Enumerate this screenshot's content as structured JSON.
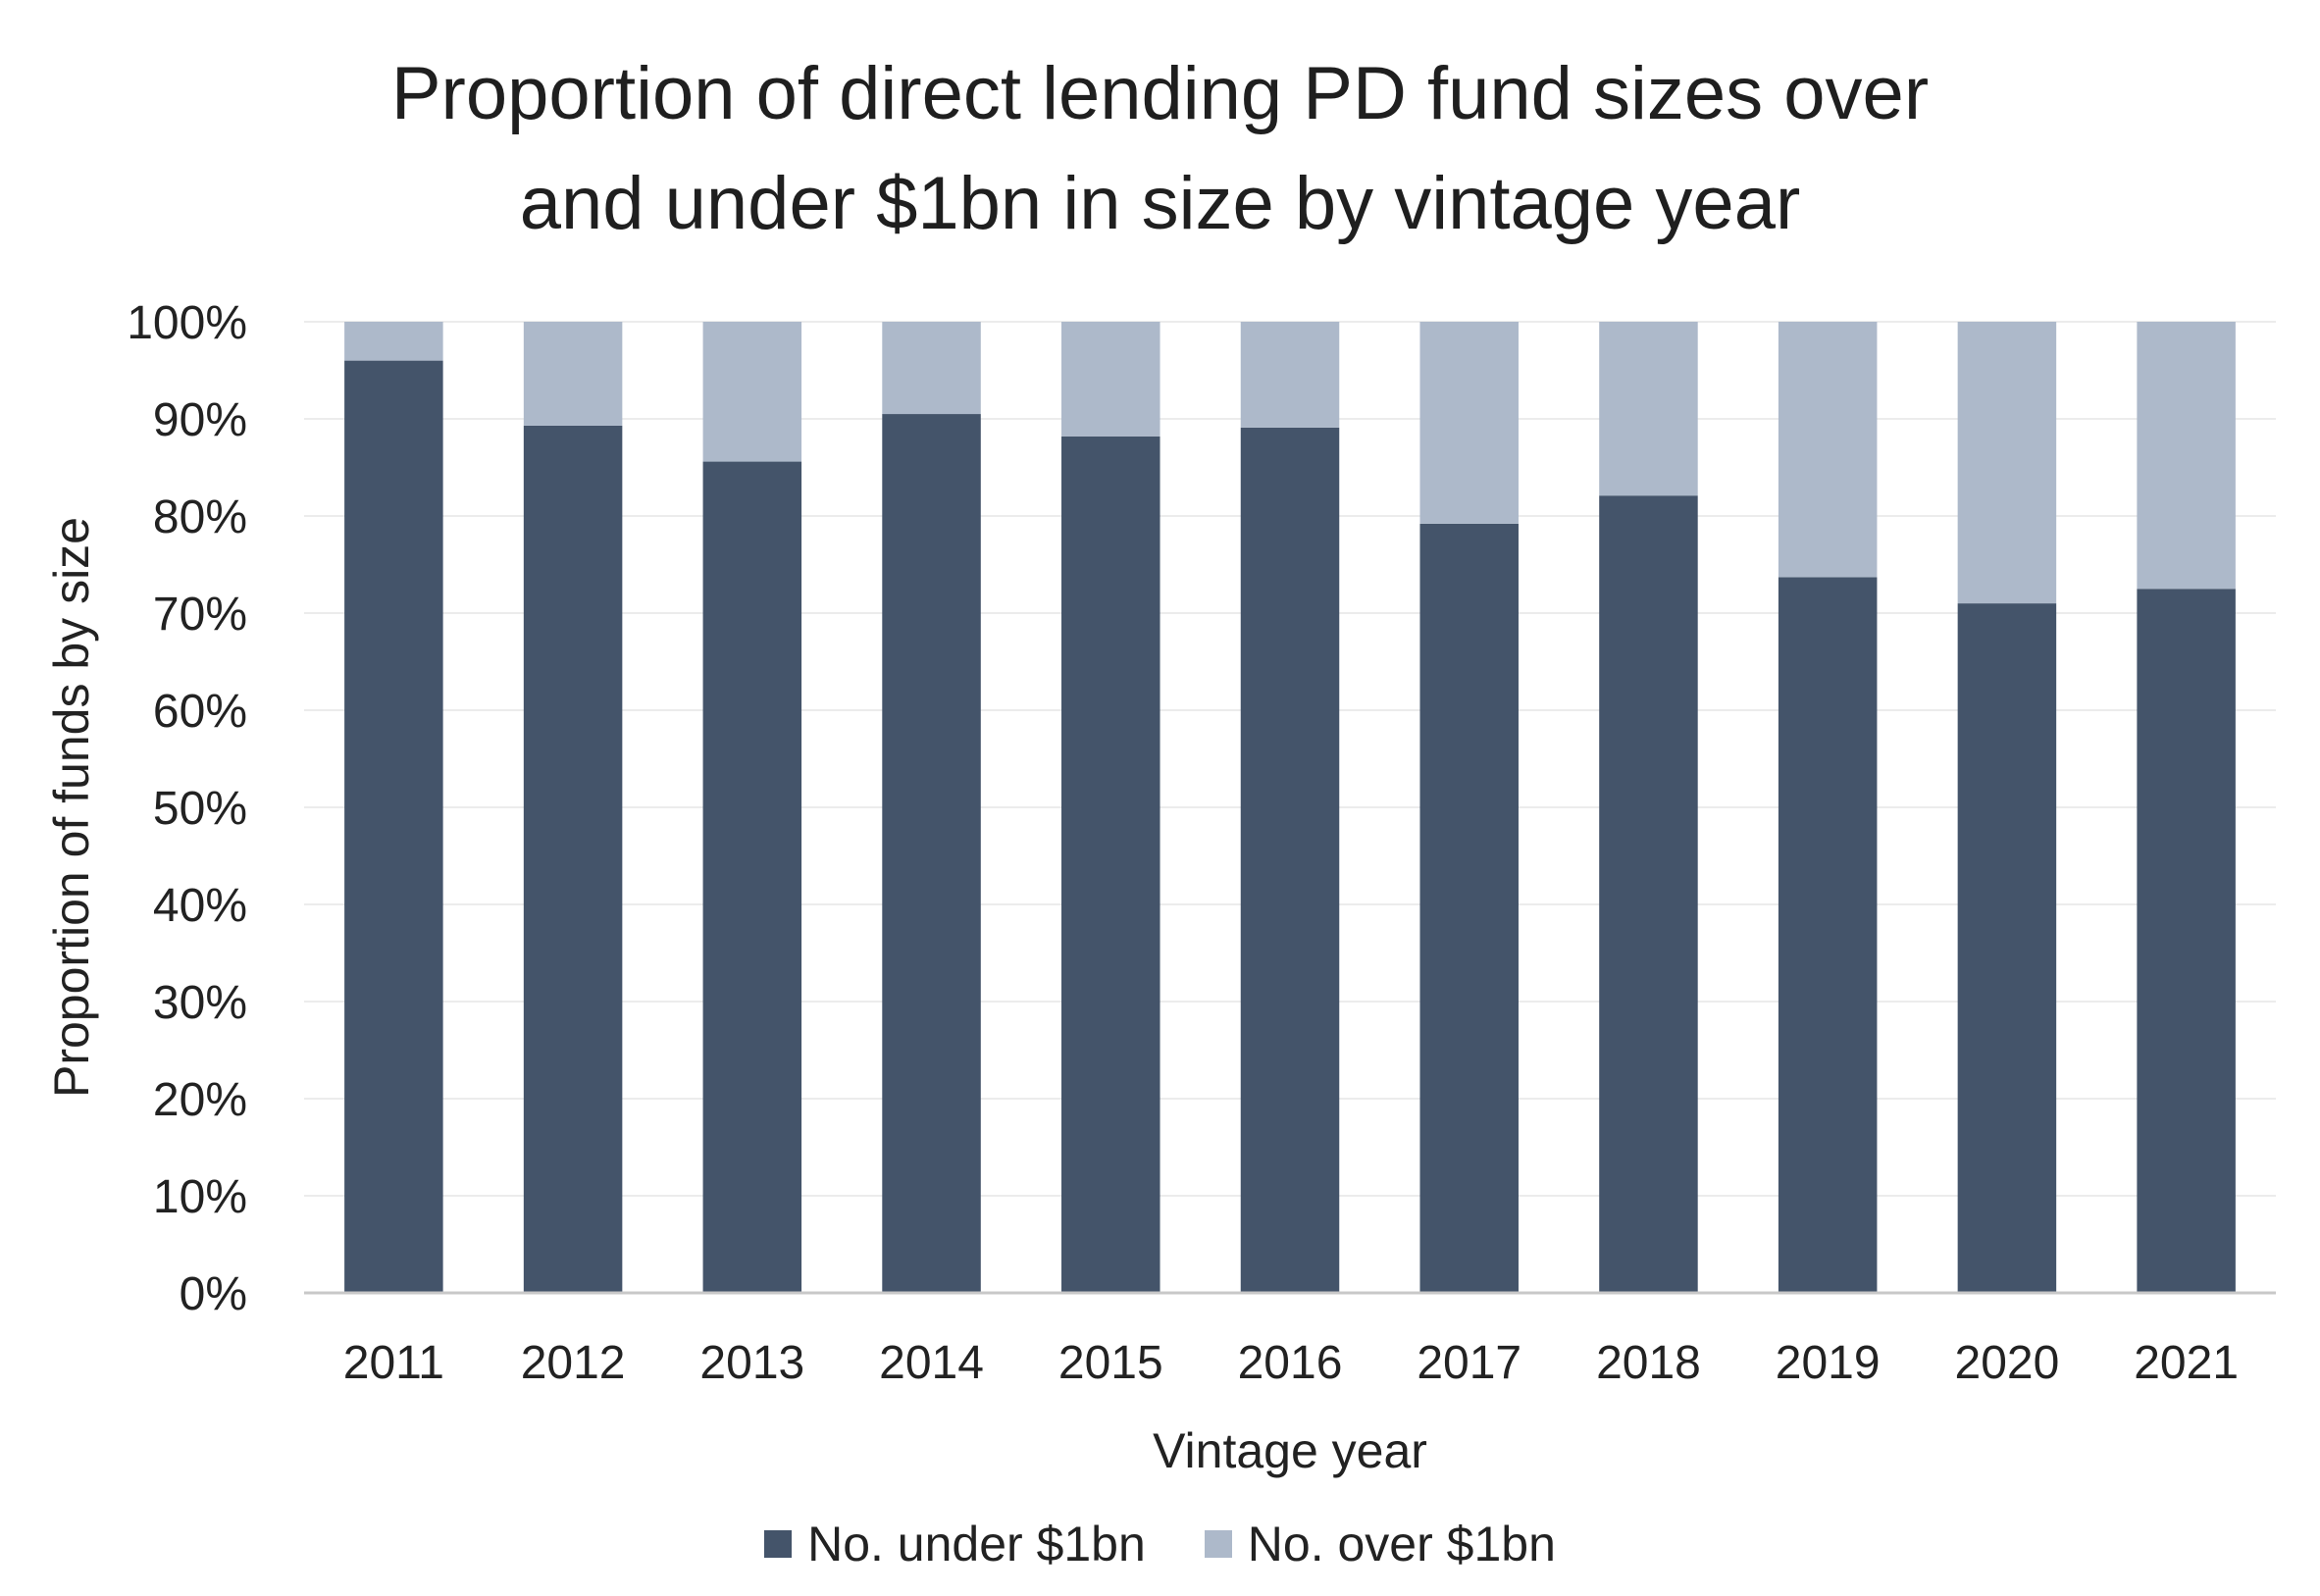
{
  "chart_data": {
    "type": "bar",
    "stacked": true,
    "title_lines": [
      "Proportion of direct lending PD fund sizes over",
      "and under $1bn in size by vintage year"
    ],
    "xlabel": "Vintage year",
    "ylabel": "Proportion of funds by size",
    "categories": [
      "2011",
      "2012",
      "2013",
      "2014",
      "2015",
      "2016",
      "2017",
      "2018",
      "2019",
      "2020",
      "2021"
    ],
    "series": [
      {
        "name": "No. under $1bn",
        "color": "#44546a",
        "values": [
          96.0,
          89.3,
          85.6,
          90.5,
          88.2,
          89.1,
          79.2,
          82.1,
          73.7,
          71.0,
          72.5
        ]
      },
      {
        "name": "No. over $1bn",
        "color": "#adb9ca",
        "values": [
          4.0,
          10.7,
          14.4,
          9.5,
          11.8,
          10.9,
          20.8,
          17.9,
          26.3,
          29.0,
          27.5
        ]
      }
    ],
    "ylim": [
      0,
      100
    ],
    "yticks": [
      "0%",
      "10%",
      "20%",
      "30%",
      "40%",
      "50%",
      "60%",
      "70%",
      "80%",
      "90%",
      "100%"
    ],
    "grid": true,
    "legend_position": "bottom"
  }
}
